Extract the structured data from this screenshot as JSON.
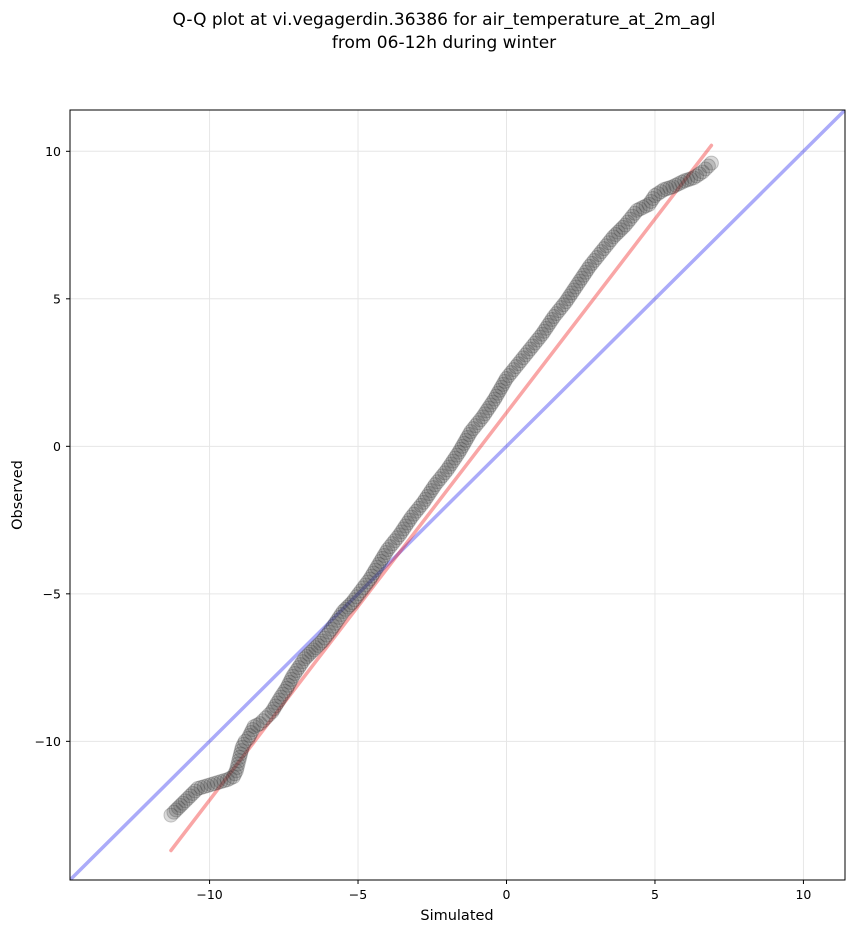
{
  "chart_data": {
    "type": "scatter",
    "title_lines": [
      "Q-Q plot at vi.vegagerdin.36386 for air_temperature_at_2m_agl",
      "from 06-12h during winter"
    ],
    "xlabel": "Simulated",
    "ylabel": "Observed",
    "xlim": [
      -14.7,
      11.4
    ],
    "ylim": [
      -14.7,
      11.4
    ],
    "xticks": [
      -10,
      -5,
      0,
      5,
      10
    ],
    "yticks": [
      -10,
      -5,
      0,
      5,
      10
    ],
    "xtick_labels": [
      "−10",
      "−5",
      "0",
      "5",
      "10"
    ],
    "ytick_labels": [
      "−10",
      "−5",
      "0",
      "5",
      "10"
    ],
    "grid": true,
    "series": [
      {
        "kind": "quantiles",
        "color": "#333333",
        "x": [
          -11.3,
          -11.2,
          -10.9,
          -10.4,
          -9.4,
          -9.2,
          -9.1,
          -8.9,
          -8.8,
          -8.7,
          -8.5,
          -8.3,
          -8.1,
          -7.9,
          -7.6,
          -7.4,
          -7.2,
          -7.0,
          -6.8,
          -6.5,
          -6.2,
          -5.9,
          -5.5,
          -5.2,
          -4.9,
          -4.6,
          -4.3,
          -4.0,
          -3.6,
          -3.2,
          -2.8,
          -2.4,
          -2.0,
          -1.6,
          -1.2,
          -0.8,
          -0.4,
          0.0,
          0.4,
          0.8,
          1.2,
          1.6,
          2.0,
          2.4,
          2.8,
          3.2,
          3.6,
          4.0,
          4.4,
          4.8,
          5.0,
          5.3,
          5.6,
          5.8,
          6.0,
          6.3,
          6.6,
          6.8,
          6.9
        ],
        "y": [
          -12.5,
          -12.4,
          -12.1,
          -11.6,
          -11.3,
          -11.2,
          -11.0,
          -10.2,
          -10.0,
          -9.9,
          -9.5,
          -9.4,
          -9.2,
          -9.0,
          -8.5,
          -8.2,
          -7.8,
          -7.5,
          -7.2,
          -6.9,
          -6.6,
          -6.2,
          -5.6,
          -5.3,
          -4.9,
          -4.5,
          -4.0,
          -3.5,
          -3.0,
          -2.4,
          -1.9,
          -1.3,
          -0.8,
          -0.2,
          0.5,
          1.0,
          1.6,
          2.3,
          2.8,
          3.3,
          3.8,
          4.4,
          4.9,
          5.5,
          6.1,
          6.6,
          7.1,
          7.5,
          8.0,
          8.2,
          8.5,
          8.7,
          8.8,
          8.9,
          9.0,
          9.1,
          9.3,
          9.5,
          9.6
        ]
      }
    ],
    "reference_line": {
      "kind": "identity",
      "slope": 1,
      "intercept": 0,
      "color": "#0000ee",
      "opacity": 0.33
    },
    "fit_line": {
      "kind": "linear-fit",
      "x": [
        -11.3,
        6.9
      ],
      "y": [
        -13.7,
        10.2
      ],
      "color": "#ee0000",
      "opacity": 0.35
    }
  }
}
